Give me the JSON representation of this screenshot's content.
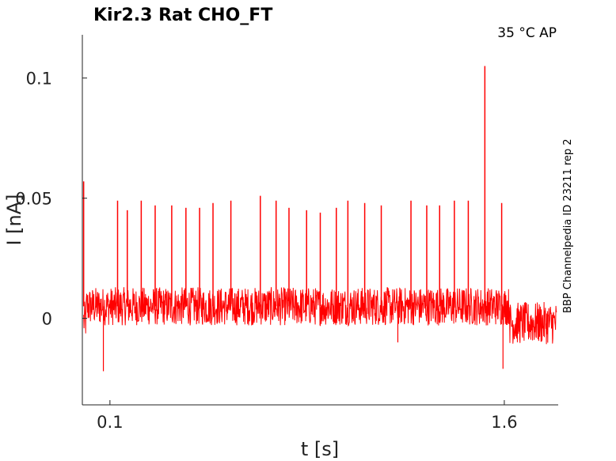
{
  "chart_data": {
    "type": "line",
    "title": "Kir2.3  Rat  CHO_FT",
    "condition": "35 °C  AP",
    "side_label": "BBP Channelpedia ID 23211 rep 2",
    "xlabel": "t [s]",
    "ylabel": "I [nA]",
    "xlim": [
      -0.005,
      1.805
    ],
    "ylim": [
      -0.036,
      0.118
    ],
    "xticks": [
      0.1,
      1.6
    ],
    "xtick_labels": [
      "0.1",
      "1.6"
    ],
    "yticks": [
      0,
      0.05,
      0.1
    ],
    "ytick_labels": [
      "0",
      "0.05",
      "0.1"
    ],
    "grid": false,
    "series": [
      {
        "color": "#ff0000",
        "stimulus_window": [
          0.0,
          1.62
        ],
        "baseline_before": -0.001,
        "baseline_during": 0.005,
        "baseline_after": -0.002,
        "noise_amplitude": 0.008,
        "spikes": [
          {
            "t": 0.0,
            "peak": 0.057
          },
          {
            "t": 0.129,
            "peak": 0.049
          },
          {
            "t": 0.166,
            "peak": 0.045
          },
          {
            "t": 0.219,
            "peak": 0.049
          },
          {
            "t": 0.272,
            "peak": 0.047
          },
          {
            "t": 0.335,
            "peak": 0.047
          },
          {
            "t": 0.389,
            "peak": 0.046
          },
          {
            "t": 0.441,
            "peak": 0.046
          },
          {
            "t": 0.492,
            "peak": 0.048
          },
          {
            "t": 0.56,
            "peak": 0.049
          },
          {
            "t": 0.672,
            "peak": 0.051
          },
          {
            "t": 0.732,
            "peak": 0.049
          },
          {
            "t": 0.781,
            "peak": 0.046
          },
          {
            "t": 0.848,
            "peak": 0.045
          },
          {
            "t": 0.9,
            "peak": 0.044
          },
          {
            "t": 0.961,
            "peak": 0.046
          },
          {
            "t": 1.005,
            "peak": 0.049
          },
          {
            "t": 1.069,
            "peak": 0.048
          },
          {
            "t": 1.132,
            "peak": 0.047
          },
          {
            "t": 1.245,
            "peak": 0.049
          },
          {
            "t": 1.305,
            "peak": 0.047
          },
          {
            "t": 1.354,
            "peak": 0.047
          },
          {
            "t": 1.41,
            "peak": 0.049
          },
          {
            "t": 1.463,
            "peak": 0.049
          },
          {
            "t": 1.526,
            "peak": 0.105
          },
          {
            "t": 1.59,
            "peak": 0.048
          }
        ],
        "dips": [
          {
            "t": 0.075,
            "min": -0.022
          },
          {
            "t": 1.195,
            "min": -0.01
          },
          {
            "t": 1.595,
            "min": -0.021
          }
        ]
      }
    ]
  }
}
